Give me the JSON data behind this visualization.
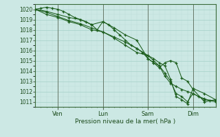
{
  "xlabel": "Pression niveau de la mer( hPa )",
  "bg_color": "#cce8e4",
  "grid_major_color": "#aad4cc",
  "grid_minor_color": "#bbddd8",
  "line_color": "#1a5c1a",
  "xlim": [
    0,
    96
  ],
  "ylim": [
    1010.5,
    1020.5
  ],
  "yticks": [
    1011,
    1012,
    1013,
    1014,
    1015,
    1016,
    1017,
    1018,
    1019,
    1020
  ],
  "xtick_labels": [
    "Ven",
    "Lun",
    "Sam",
    "Dim"
  ],
  "xtick_positions": [
    12,
    36,
    60,
    84
  ],
  "vlines": [
    12,
    36,
    60,
    84
  ],
  "series": [
    {
      "x": [
        0,
        3,
        6,
        9,
        12,
        15,
        18,
        21,
        24,
        27,
        30,
        33,
        36,
        39,
        42,
        45,
        48,
        51,
        54,
        57,
        60,
        63,
        66,
        69,
        72,
        75,
        78,
        81,
        84,
        87,
        90,
        93,
        96
      ],
      "y": [
        1020.0,
        1020.1,
        1020.2,
        1020.1,
        1020.0,
        1019.8,
        1019.5,
        1019.2,
        1019.0,
        1018.8,
        1018.5,
        1018.0,
        1018.8,
        1018.5,
        1018.0,
        1017.5,
        1017.0,
        1016.5,
        1016.2,
        1015.8,
        1015.2,
        1014.8,
        1014.5,
        1013.5,
        1012.8,
        1012.5,
        1012.2,
        1012.0,
        1011.8,
        1011.5,
        1011.3,
        1011.1,
        1011.0
      ]
    },
    {
      "x": [
        0,
        6,
        12,
        18,
        24,
        30,
        36,
        42,
        48,
        54,
        60,
        63,
        66,
        69,
        72,
        75,
        78,
        81,
        84,
        90,
        96
      ],
      "y": [
        1020.0,
        1019.8,
        1019.5,
        1019.2,
        1019.0,
        1018.5,
        1018.8,
        1018.2,
        1017.5,
        1017.0,
        1015.2,
        1014.8,
        1014.3,
        1014.8,
        1015.0,
        1014.8,
        1013.3,
        1013.0,
        1012.2,
        1011.0,
        1011.2
      ]
    },
    {
      "x": [
        0,
        6,
        12,
        18,
        24,
        30,
        36,
        42,
        48,
        54,
        60,
        63,
        66,
        69,
        72,
        75,
        78,
        81,
        84,
        90,
        96
      ],
      "y": [
        1020.0,
        1019.5,
        1019.2,
        1018.8,
        1018.5,
        1018.0,
        1017.8,
        1017.2,
        1016.5,
        1015.8,
        1015.5,
        1015.2,
        1014.8,
        1014.5,
        1013.2,
        1011.5,
        1011.2,
        1010.8,
        1012.3,
        1011.8,
        1011.2
      ]
    },
    {
      "x": [
        0,
        6,
        12,
        18,
        24,
        30,
        36,
        42,
        48,
        54,
        60,
        63,
        66,
        69,
        72,
        75,
        78,
        81,
        84,
        90,
        96
      ],
      "y": [
        1020.0,
        1019.7,
        1019.3,
        1018.9,
        1018.6,
        1018.2,
        1017.8,
        1017.3,
        1016.8,
        1016.2,
        1015.5,
        1015.0,
        1014.5,
        1013.8,
        1013.0,
        1011.8,
        1011.5,
        1011.0,
        1011.8,
        1011.2,
        1011.1
      ]
    }
  ]
}
